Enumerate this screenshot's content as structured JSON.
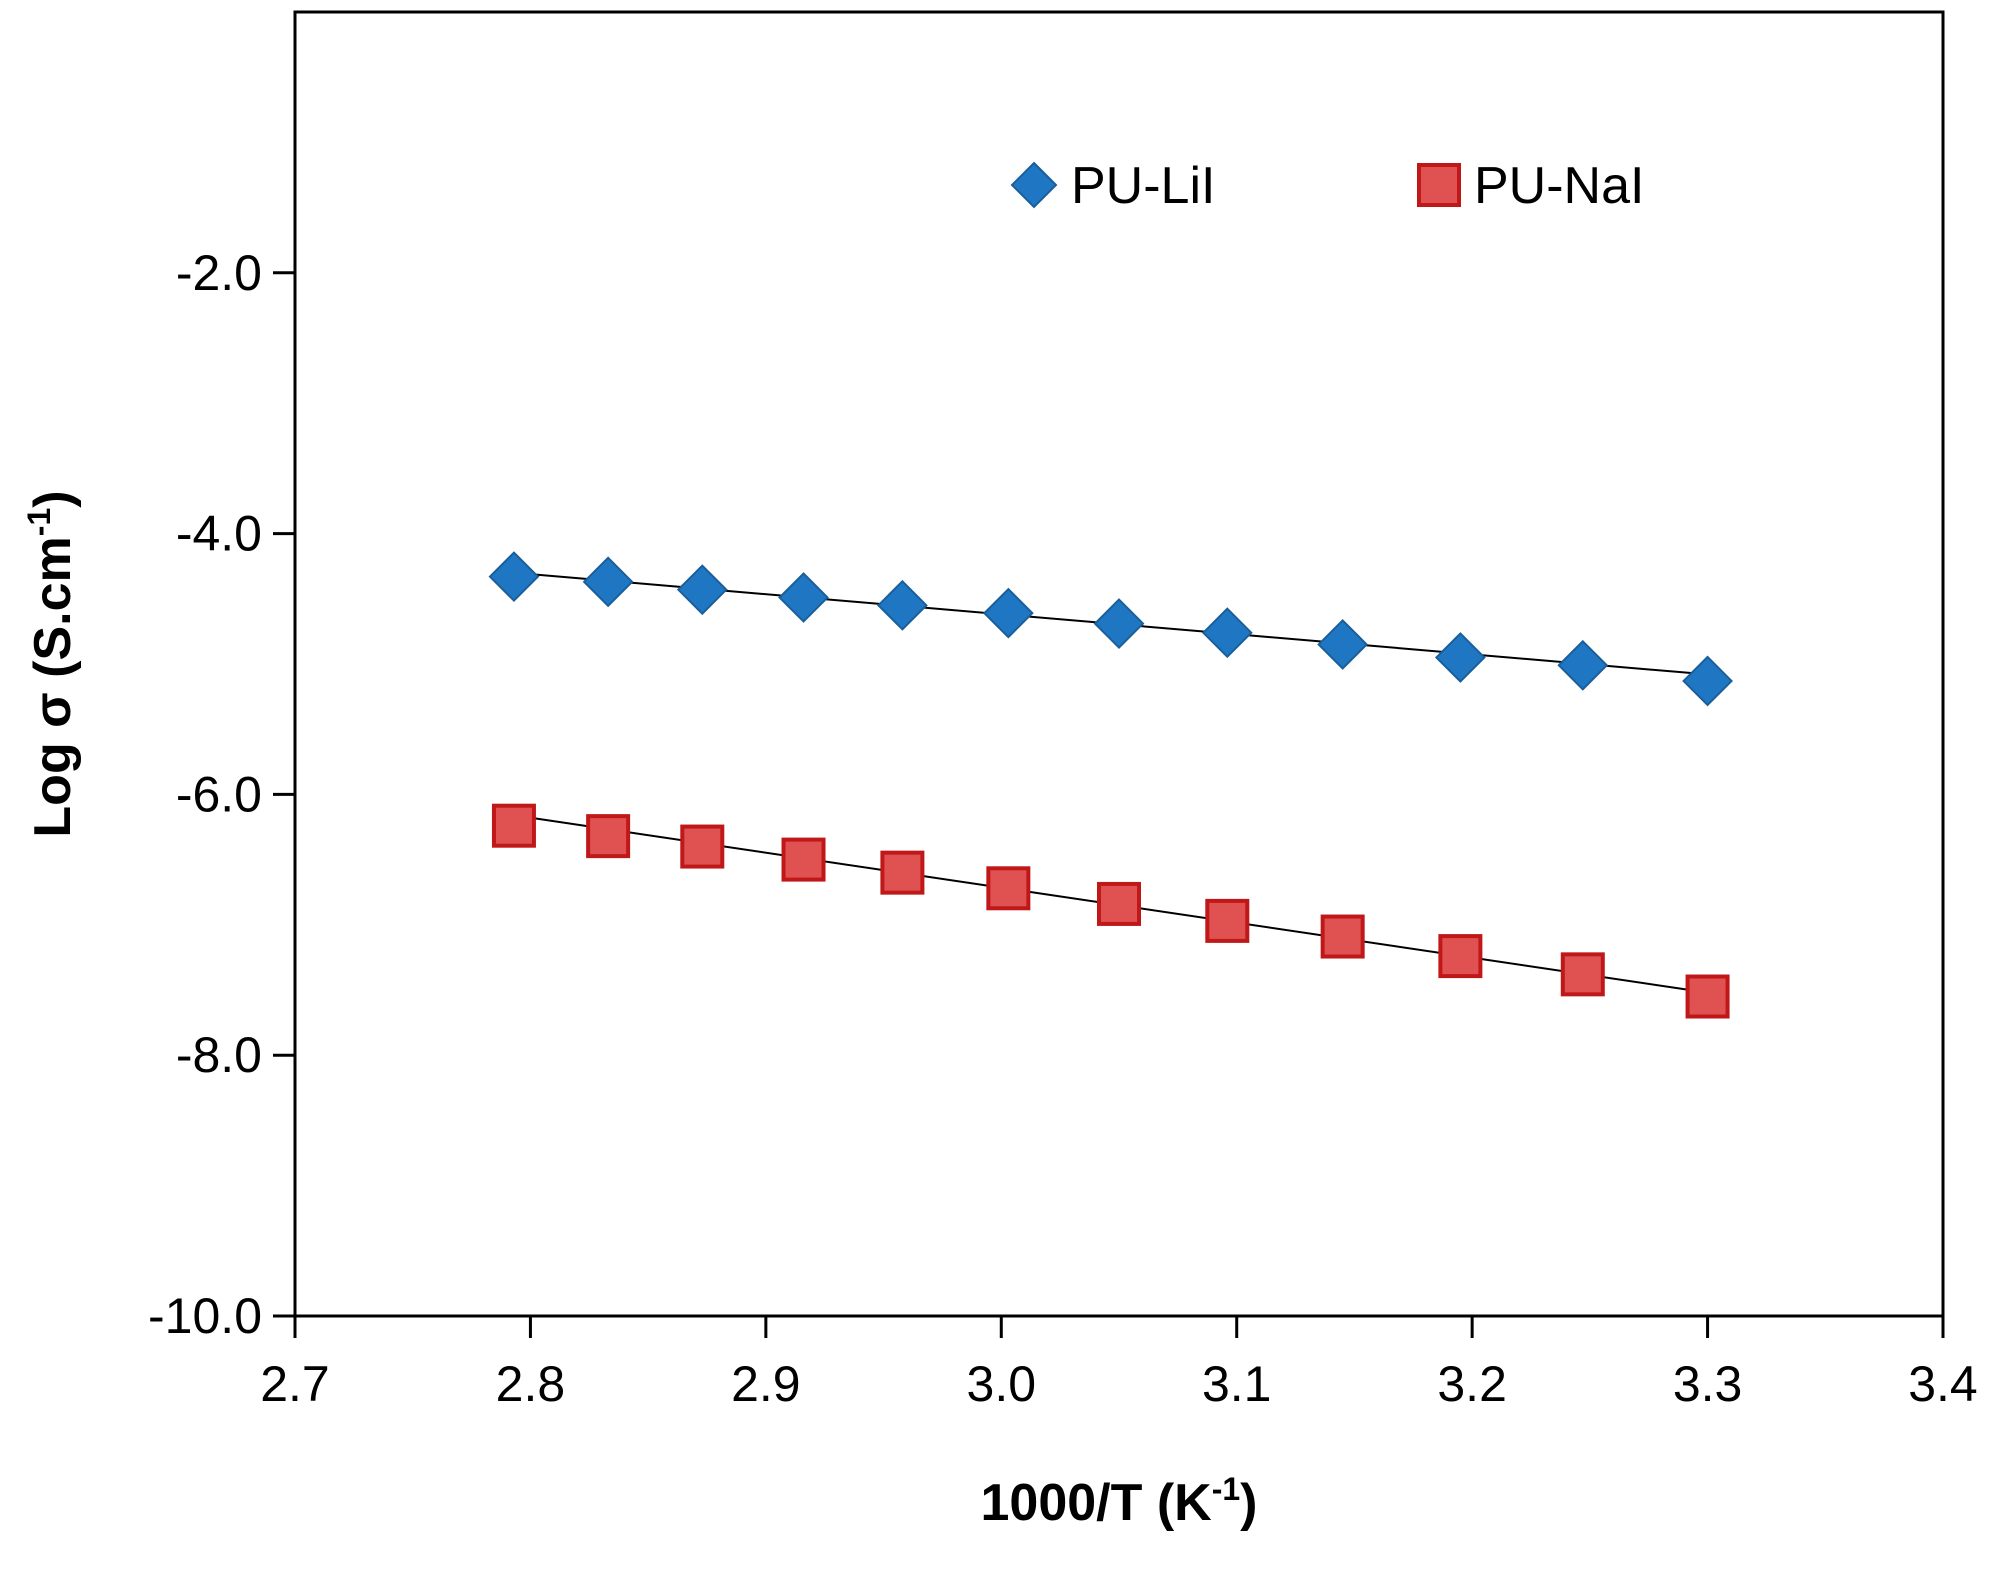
{
  "chart_data": {
    "type": "scatter",
    "title": "",
    "xlabel": {
      "text": "1000/T (K",
      "sup": "-1",
      "close": ")"
    },
    "ylabel": {
      "text": "Log σ (S.cm",
      "sup": "-1",
      "close": ")"
    },
    "xlim": [
      2.7,
      3.4
    ],
    "ylim": [
      -10.0,
      0.0
    ],
    "xticks": [
      2.7,
      2.8,
      2.9,
      3.0,
      3.1,
      3.2,
      3.3,
      3.4
    ],
    "xtick_labels": [
      "2.7",
      "2.8",
      "2.9",
      "3.0",
      "3.1",
      "3.2",
      "3.3",
      "3.4"
    ],
    "yticks": [
      -10.0,
      -8.0,
      -6.0,
      -4.0,
      -2.0
    ],
    "ytick_labels": [
      "-10.0",
      "-8.0",
      "-6.0",
      "-4.0",
      "-2.0"
    ],
    "grid": false,
    "legend_position": "top-right",
    "series": [
      {
        "name": "PU-LiI",
        "marker": "diamond",
        "color": "#1f77c4",
        "x": [
          2.793,
          2.833,
          2.873,
          2.916,
          2.958,
          3.003,
          3.05,
          3.096,
          3.145,
          3.195,
          3.247,
          3.3
        ],
        "y": [
          -4.33,
          -4.37,
          -4.43,
          -4.49,
          -4.55,
          -4.61,
          -4.69,
          -4.76,
          -4.85,
          -4.95,
          -5.01,
          -5.13
        ],
        "trendline": {
          "x": [
            2.793,
            3.3
          ],
          "y": [
            -4.3,
            -5.08
          ]
        }
      },
      {
        "name": "PU-NaI",
        "marker": "square",
        "color": "#e05252",
        "x": [
          2.793,
          2.833,
          2.873,
          2.916,
          2.958,
          3.003,
          3.05,
          3.096,
          3.145,
          3.195,
          3.247,
          3.3
        ],
        "y": [
          -6.24,
          -6.32,
          -6.4,
          -6.5,
          -6.6,
          -6.72,
          -6.84,
          -6.97,
          -7.09,
          -7.24,
          -7.38,
          -7.55
        ],
        "trendline": {
          "x": [
            2.793,
            3.3
          ],
          "y": [
            -6.16,
            -7.52
          ]
        }
      }
    ]
  }
}
